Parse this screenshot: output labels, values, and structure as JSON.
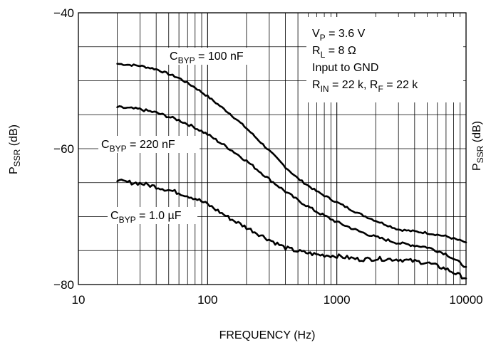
{
  "chart_data": {
    "type": "line",
    "xscale": "log",
    "xlim": [
      10,
      10000
    ],
    "ylim": [
      -80,
      -40
    ],
    "grid": true,
    "xlabel": "FREQUENCY (Hz)",
    "ylabel": {
      "main": "P",
      "sub": "SSR",
      "unit": " (dB)"
    },
    "right_ylabel_fragment": {
      "main": "P",
      "sub": "SSR",
      "unit": " (dB)"
    },
    "x_ticks": [
      {
        "value": 10,
        "label": "10"
      },
      {
        "value": 100,
        "label": "100"
      },
      {
        "value": 1000,
        "label": "1000"
      },
      {
        "value": 10000,
        "label": "10000"
      }
    ],
    "y_ticks": [
      {
        "value": -40,
        "label": "−40"
      },
      {
        "value": -60,
        "label": "−60"
      },
      {
        "value": -80,
        "label": "−80"
      }
    ],
    "annotation": [
      {
        "main": "V",
        "sub": "P",
        "rest": " = 3.6 V"
      },
      {
        "main": "R",
        "sub": "L",
        "rest": " = 8 Ω"
      },
      {
        "main": "Input to GND",
        "sub": "",
        "rest": ""
      },
      {
        "main": "R",
        "sub": "IN",
        "rest": " = 22 k, R",
        "sub2": "F",
        "rest2": " = 22 k"
      }
    ],
    "series": [
      {
        "label": {
          "main": "C",
          "sub": "BYP",
          "rest": " = 100 nF"
        },
        "noise": 0.15,
        "x": [
          20,
          30,
          40,
          60,
          80,
          100,
          150,
          200,
          300,
          400,
          500,
          700,
          1000,
          1500,
          2000,
          3000,
          5000,
          7000,
          10000
        ],
        "y": [
          -47.5,
          -47.8,
          -48.3,
          -49.6,
          -51.0,
          -52.3,
          -54.9,
          -57.0,
          -60.3,
          -62.7,
          -64.4,
          -66.3,
          -67.9,
          -69.6,
          -70.6,
          -71.9,
          -72.4,
          -72.9,
          -73.8
        ]
      },
      {
        "label": {
          "main": "C",
          "sub": "BYP",
          "rest": " = 220 nF"
        },
        "noise": 0.2,
        "x": [
          20,
          30,
          40,
          60,
          80,
          100,
          150,
          200,
          300,
          400,
          500,
          700,
          1000,
          1500,
          2000,
          3000,
          5000,
          7000,
          10000
        ],
        "y": [
          -53.9,
          -54.2,
          -54.7,
          -55.8,
          -56.9,
          -57.9,
          -60.1,
          -61.8,
          -64.5,
          -66.3,
          -67.6,
          -69.3,
          -70.8,
          -72.2,
          -73.0,
          -73.9,
          -74.5,
          -75.5,
          -77.4
        ]
      },
      {
        "label": {
          "main": "C",
          "sub": "BYP",
          "rest": " = 1.0 µF"
        },
        "noise": 0.3,
        "x": [
          20,
          30,
          40,
          60,
          80,
          100,
          150,
          200,
          300,
          400,
          500,
          700,
          1000,
          1500,
          2000,
          3000,
          5000,
          7000,
          10000
        ],
        "y": [
          -64.8,
          -65.1,
          -65.6,
          -66.5,
          -67.3,
          -68.2,
          -70.3,
          -71.6,
          -73.4,
          -74.6,
          -75.1,
          -75.6,
          -75.8,
          -76.3,
          -76.2,
          -76.3,
          -76.8,
          -77.7,
          -79.1
        ]
      }
    ]
  }
}
